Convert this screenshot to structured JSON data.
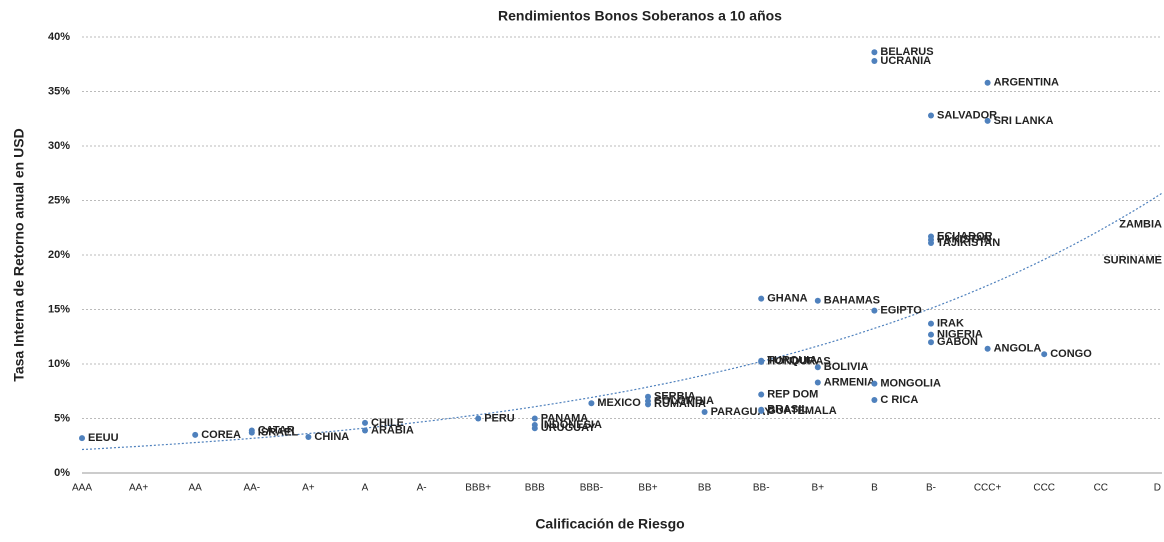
{
  "chart_data": {
    "type": "scatter",
    "title": "Rendimientos Bonos Soberanos a 10 años",
    "x_label": "Calificación de Riesgo",
    "y_label": "Tasa Interna de Retorno anual en USD",
    "categories": [
      "AAA",
      "AA+",
      "AA",
      "AA-",
      "A+",
      "A",
      "A-",
      "BBB+",
      "BBB",
      "BBB-",
      "BB+",
      "BB",
      "BB-",
      "B+",
      "B",
      "B-",
      "CCC+",
      "CCC",
      "CC",
      "D"
    ],
    "ylim": [
      0,
      40
    ],
    "yticks": [
      {
        "value": 0,
        "label": "0%"
      },
      {
        "value": 5,
        "label": "5%"
      },
      {
        "value": 10,
        "label": "10%"
      },
      {
        "value": 15,
        "label": "15%"
      },
      {
        "value": 20,
        "label": "20%"
      },
      {
        "value": 25,
        "label": "25%"
      },
      {
        "value": 30,
        "label": "30%"
      },
      {
        "value": 35,
        "label": "35%"
      },
      {
        "value": 40,
        "label": "40%"
      }
    ],
    "grid": true,
    "color": "#4f81bd",
    "trendline": "exponential",
    "labels": [
      "EEUU",
      "COREA",
      "CATAR",
      "ISRAEL",
      "CHINA",
      "CHILE",
      "ARABIA",
      "PERU",
      "PANAMA",
      "INDONESIA",
      "URUGUAY",
      "MEXICO",
      "RUMANIA",
      "COLOMBIA",
      "SERBIA",
      "PARAGUAY",
      "GHANA",
      "TURQUIA",
      "HONDURAS",
      "REP DOM",
      "BRASIL",
      "GUATEMALA",
      "BAHAMAS",
      "BOLIVIA",
      "ARMENIA",
      "BELARUS",
      "UCRANIA",
      "EGIPTO",
      "MONGOLIA",
      "C RICA",
      "SALVADOR",
      "ECUADOR",
      "PAKISTAN",
      "TAJIKISTAN",
      "IRAK",
      "NIGERIA",
      "GABON",
      "ARGENTINA",
      "SRI LANKA",
      "ANGOLA",
      "CONGO",
      "ZAMBIA",
      "SURINAME"
    ],
    "x": [
      "AAA",
      "AA",
      "AA-",
      "AA-",
      "A+",
      "A",
      "A",
      "BBB+",
      "BBB",
      "BBB",
      "BBB",
      "BBB-",
      "BB+",
      "BB+",
      "BB+",
      "BB",
      "BB-",
      "BB-",
      "BB-",
      "BB-",
      "BB-",
      "BB-",
      "B+",
      "B+",
      "B+",
      "B",
      "B",
      "B",
      "B",
      "B",
      "B-",
      "B-",
      "B-",
      "B-",
      "B-",
      "B-",
      "B-",
      "CCC+",
      "CCC+",
      "CCC+",
      "CCC",
      "D",
      "D"
    ],
    "values": [
      3.2,
      3.5,
      3.9,
      3.7,
      3.3,
      4.6,
      3.9,
      5.0,
      5.0,
      4.4,
      4.1,
      6.4,
      6.3,
      6.6,
      7.0,
      5.6,
      16.0,
      10.3,
      10.2,
      7.2,
      5.8,
      5.7,
      15.8,
      9.7,
      8.3,
      38.6,
      37.8,
      14.9,
      8.2,
      6.7,
      32.8,
      21.7,
      21.4,
      21.1,
      13.7,
      12.7,
      12.0,
      35.8,
      32.3,
      11.4,
      10.9,
      22.8,
      19.5
    ]
  }
}
